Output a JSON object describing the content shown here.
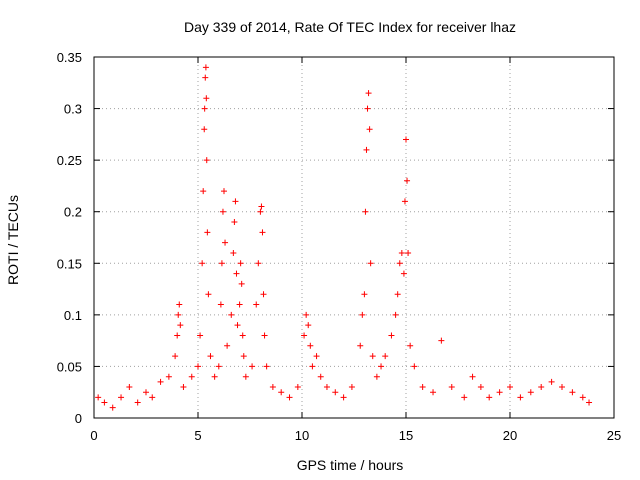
{
  "chart_data": {
    "type": "scatter",
    "title": "Day 339 of 2014, Rate Of TEC Index for receiver lhaz",
    "xlabel": "GPS time / hours",
    "ylabel": "ROTI / TECUs",
    "xlim": [
      0,
      25
    ],
    "ylim": [
      0,
      0.35
    ],
    "xticks": [
      "0",
      "5",
      "10",
      "15",
      "20",
      "25"
    ],
    "yticks": [
      "0",
      "0.05",
      "0.1",
      "0.15",
      "0.2",
      "0.25",
      "0.3",
      "0.35"
    ],
    "grid": true,
    "marker": "plus",
    "color": "#ff0000",
    "series": [
      {
        "x": [
          0.2,
          0.5,
          0.9,
          1.3,
          1.7,
          2.1,
          2.5,
          2.8,
          3.2,
          3.6,
          3.9,
          4.0,
          4.05,
          4.1,
          4.15,
          4.3,
          4.7,
          5.0,
          5.1,
          5.2,
          5.25,
          5.3,
          5.32,
          5.35,
          5.38,
          5.4,
          5.42,
          5.45,
          5.5,
          5.6,
          5.8,
          6.0,
          6.1,
          6.15,
          6.2,
          6.25,
          6.3,
          6.4,
          6.6,
          6.7,
          6.75,
          6.8,
          6.85,
          6.9,
          7.0,
          7.05,
          7.1,
          7.15,
          7.2,
          7.3,
          7.6,
          7.8,
          7.9,
          8.0,
          8.05,
          8.1,
          8.15,
          8.2,
          8.3,
          8.6,
          9.0,
          9.4,
          9.8,
          10.1,
          10.2,
          10.3,
          10.4,
          10.5,
          10.7,
          10.9,
          11.2,
          11.6,
          12.0,
          12.4,
          12.8,
          12.9,
          13.0,
          13.05,
          13.1,
          13.15,
          13.2,
          13.25,
          13.3,
          13.4,
          13.6,
          13.8,
          14.0,
          14.3,
          14.5,
          14.6,
          14.7,
          14.8,
          14.9,
          14.95,
          15.0,
          15.05,
          15.1,
          15.2,
          15.4,
          15.8,
          16.3,
          16.7,
          17.2,
          17.8,
          18.2,
          18.6,
          19.0,
          19.5,
          20.0,
          20.5,
          21.0,
          21.5,
          22.0,
          22.5,
          23.0,
          23.5,
          23.8
        ],
        "y": [
          0.02,
          0.015,
          0.01,
          0.02,
          0.03,
          0.015,
          0.025,
          0.02,
          0.035,
          0.04,
          0.06,
          0.08,
          0.1,
          0.11,
          0.09,
          0.03,
          0.04,
          0.05,
          0.08,
          0.15,
          0.22,
          0.28,
          0.3,
          0.33,
          0.34,
          0.31,
          0.25,
          0.18,
          0.12,
          0.06,
          0.04,
          0.05,
          0.11,
          0.15,
          0.2,
          0.22,
          0.17,
          0.07,
          0.1,
          0.16,
          0.19,
          0.21,
          0.14,
          0.09,
          0.11,
          0.15,
          0.13,
          0.08,
          0.06,
          0.04,
          0.05,
          0.11,
          0.15,
          0.2,
          0.205,
          0.18,
          0.12,
          0.08,
          0.05,
          0.03,
          0.025,
          0.02,
          0.03,
          0.08,
          0.1,
          0.09,
          0.07,
          0.05,
          0.06,
          0.04,
          0.03,
          0.025,
          0.02,
          0.03,
          0.07,
          0.1,
          0.12,
          0.2,
          0.26,
          0.3,
          0.315,
          0.28,
          0.15,
          0.06,
          0.04,
          0.05,
          0.06,
          0.08,
          0.1,
          0.12,
          0.15,
          0.16,
          0.14,
          0.21,
          0.27,
          0.23,
          0.16,
          0.07,
          0.05,
          0.03,
          0.025,
          0.075,
          0.03,
          0.02,
          0.04,
          0.03,
          0.02,
          0.025,
          0.03,
          0.02,
          0.025,
          0.03,
          0.035,
          0.03,
          0.025,
          0.02,
          0.015
        ]
      }
    ]
  }
}
